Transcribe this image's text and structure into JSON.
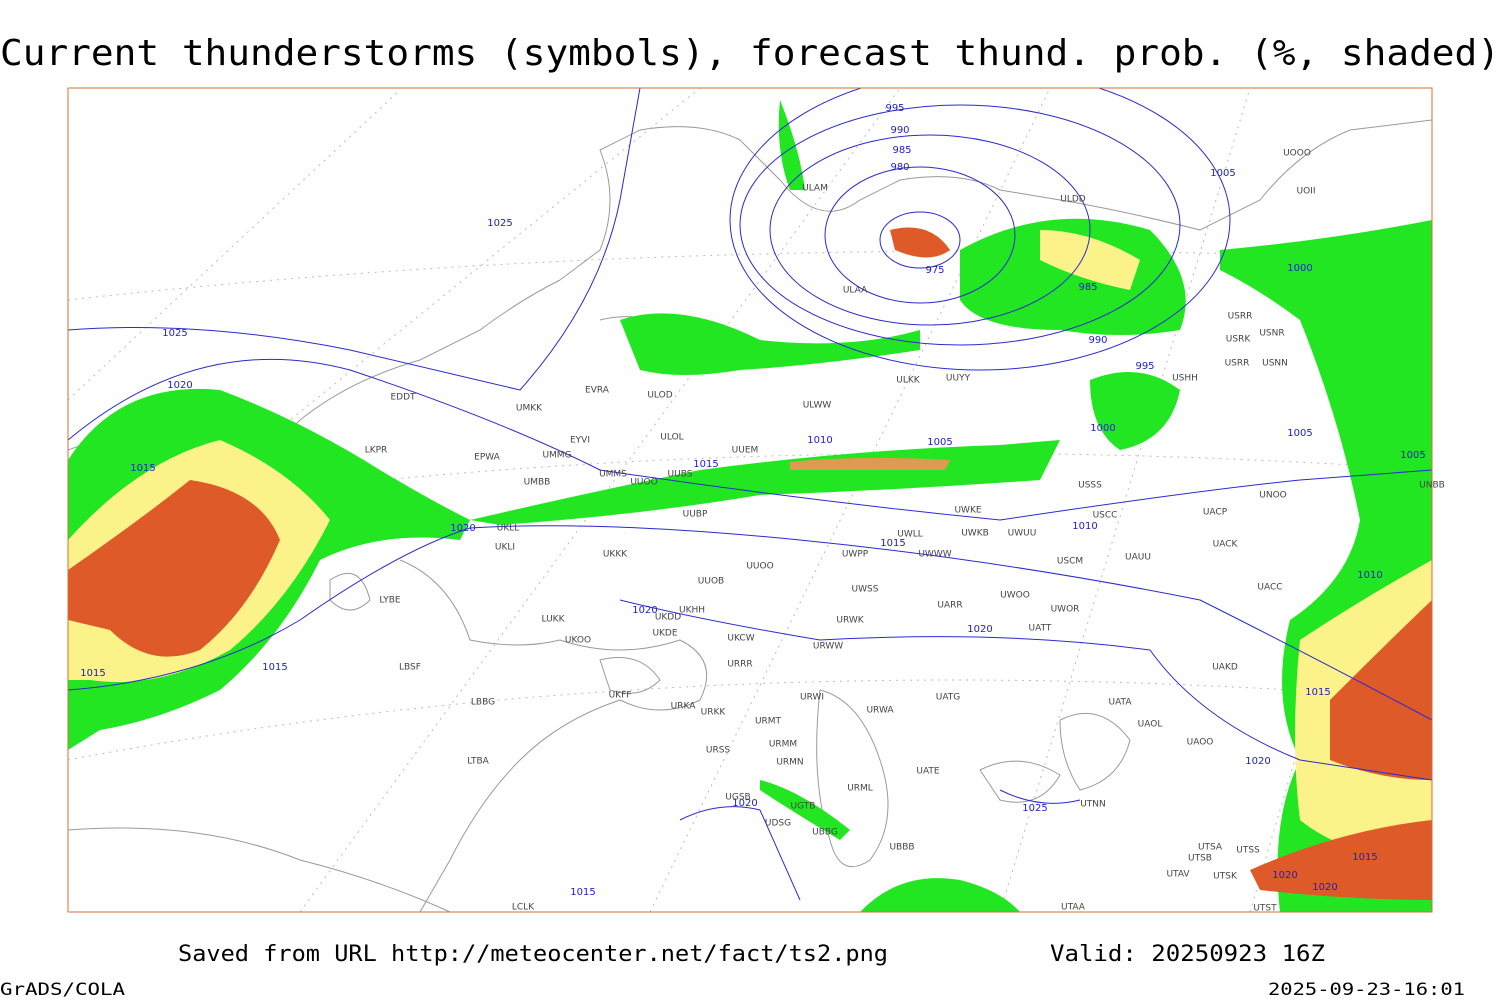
{
  "header": {
    "title": "Current thunderstorms (symbols), forecast thund. prob. (%, shaded)"
  },
  "map": {
    "isobar_labels": [
      995,
      990,
      985,
      980,
      975,
      1025,
      1025,
      1020,
      1015,
      1005,
      1000,
      985,
      990,
      995,
      1000,
      1005,
      1005,
      1010,
      1005,
      1015,
      1020,
      1015,
      1010,
      1010,
      1020,
      1020,
      1015,
      1015,
      1015,
      1020,
      1025,
      1020,
      1015,
      1015,
      1020,
      1020
    ],
    "station_labels": [
      "EDDT",
      "LKPR",
      "EPWA",
      "UMKK",
      "ULOD",
      "EVRA",
      "UMMG",
      "EYVI",
      "UMBB",
      "ULOL",
      "UUEM",
      "UMMS",
      "UUOO",
      "UUBS",
      "UUBP",
      "UKLL",
      "UKLI",
      "UKKK",
      "UUOO",
      "UUOB",
      "LUKK",
      "UKOO",
      "UKDD",
      "UKHH",
      "UKDE",
      "UKCW",
      "URRR",
      "UKFF",
      "URKA",
      "URKK",
      "URMT",
      "URSS",
      "URMM",
      "URMN",
      "URWI",
      "URWA",
      "UATG",
      "UATE",
      "URML",
      "UBBB",
      "UGTB",
      "UDSG",
      "UBBG",
      "UGSB",
      "LYBE",
      "LBSF",
      "LBBG",
      "LTBA",
      "LCLK",
      "UWPP",
      "UWSS",
      "UWWW",
      "UWKE",
      "UWKB",
      "UWLL",
      "UWUU",
      "UWOO",
      "UWOR",
      "UARR",
      "UATT",
      "URWW",
      "URWK",
      "USCM",
      "UAUU",
      "UACK",
      "UACP",
      "UNOO",
      "UACC",
      "UAKD",
      "UATA",
      "UAOL",
      "UAOO",
      "UTNN",
      "UTSA",
      "UTSB",
      "UTSS",
      "UTAV",
      "UTSK",
      "UTAA",
      "UTST",
      "USSS",
      "USCC",
      "UUYY",
      "ULKK",
      "ULWW",
      "ULAA",
      "ULAM",
      "ULDD",
      "USRR",
      "USRK",
      "USNR",
      "USRR",
      "USNN",
      "USHH",
      "UOOO",
      "UOII",
      "UNBB"
    ]
  },
  "footer": {
    "saved_from": "Saved from URL http://meteocenter.net/fact/ts2.png",
    "valid": "Valid: 20250923 16Z",
    "software": "GrADS/COLA",
    "timestamp": "2025-09-23-16:01"
  }
}
